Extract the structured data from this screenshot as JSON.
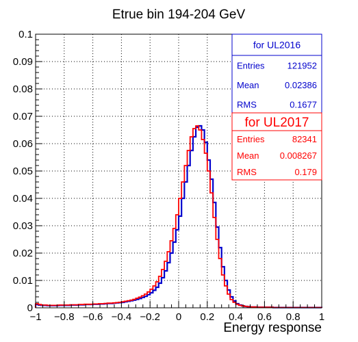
{
  "chart_data": {
    "type": "line",
    "title": "Etrue bin 194-204 GeV",
    "xlabel": "Energy response",
    "ylabel": "",
    "xlim": [
      -1,
      1
    ],
    "ylim": [
      0,
      0.1
    ],
    "grid": true,
    "x_ticks": [
      "−1",
      "−0.8",
      "−0.6",
      "−0.4",
      "−0.2",
      "0",
      "0.2",
      "0.4",
      "0.6",
      "0.8",
      "1"
    ],
    "x_tick_values": [
      -1,
      -0.8,
      -0.6,
      -0.4,
      -0.2,
      0,
      0.2,
      0.4,
      0.6,
      0.8,
      1
    ],
    "y_ticks": [
      "0",
      "0.01",
      "0.02",
      "0.03",
      "0.04",
      "0.05",
      "0.06",
      "0.07",
      "0.08",
      "0.09",
      "0.1"
    ],
    "y_tick_values": [
      0,
      0.01,
      0.02,
      0.03,
      0.04,
      0.05,
      0.06,
      0.07,
      0.08,
      0.09,
      0.1
    ],
    "bin_edges_range": [
      -1,
      1
    ],
    "bin_width": 0.02,
    "series": [
      {
        "name": "for UL2016",
        "color": "#0000cc",
        "values": [
          0.0012,
          0.001,
          0.0009,
          0.0009,
          0.0008,
          0.0008,
          0.0008,
          0.0008,
          0.0009,
          0.0009,
          0.0009,
          0.0009,
          0.001,
          0.001,
          0.001,
          0.0011,
          0.0011,
          0.0012,
          0.0012,
          0.0012,
          0.0013,
          0.0013,
          0.0014,
          0.0014,
          0.0015,
          0.0016,
          0.0016,
          0.0017,
          0.0018,
          0.0019,
          0.002,
          0.0022,
          0.0024,
          0.0026,
          0.0028,
          0.0031,
          0.0034,
          0.0038,
          0.0042,
          0.0048,
          0.0055,
          0.0064,
          0.0075,
          0.009,
          0.011,
          0.0135,
          0.0165,
          0.02,
          0.024,
          0.0285,
          0.0335,
          0.04,
          0.046,
          0.052,
          0.0575,
          0.0625,
          0.066,
          0.0665,
          0.065,
          0.0605,
          0.054,
          0.047,
          0.0385,
          0.0295,
          0.022,
          0.015,
          0.01,
          0.0065,
          0.004,
          0.0025,
          0.0015,
          0.001,
          0.0007,
          0.0005,
          0.0004,
          0.0003,
          0.0003,
          0.0002,
          0.0002,
          0.0002,
          0.0002,
          0.0002,
          0.0002,
          0.0001,
          0.0001,
          0.0001,
          0.0001,
          0.0001,
          0.0001,
          0.0001,
          0.0001,
          0.0001,
          0.0001,
          0.0001,
          0.0001,
          0.0001,
          0.0001,
          0.0001,
          0.0001,
          0.0001
        ]
      },
      {
        "name": "for UL2017",
        "color": "#ff0000",
        "values": [
          0.0015,
          0.0012,
          0.001,
          0.001,
          0.0009,
          0.0009,
          0.0009,
          0.0009,
          0.001,
          0.001,
          0.001,
          0.001,
          0.0011,
          0.0011,
          0.0011,
          0.0012,
          0.0012,
          0.0013,
          0.0013,
          0.0013,
          0.0014,
          0.0014,
          0.0015,
          0.0015,
          0.0016,
          0.0017,
          0.0017,
          0.0018,
          0.0019,
          0.002,
          0.0022,
          0.0024,
          0.0026,
          0.0028,
          0.0031,
          0.0035,
          0.0039,
          0.0044,
          0.005,
          0.0058,
          0.0068,
          0.008,
          0.0095,
          0.0115,
          0.014,
          0.017,
          0.0205,
          0.0245,
          0.029,
          0.034,
          0.04,
          0.046,
          0.052,
          0.0575,
          0.0625,
          0.0655,
          0.0665,
          0.065,
          0.0615,
          0.0565,
          0.05,
          0.042,
          0.033,
          0.025,
          0.018,
          0.012,
          0.008,
          0.005,
          0.003,
          0.002,
          0.0013,
          0.0009,
          0.0007,
          0.0005,
          0.0004,
          0.0003,
          0.0003,
          0.0002,
          0.0002,
          0.0002,
          0.0002,
          0.0002,
          0.0002,
          0.0001,
          0.0001,
          0.0001,
          0.0001,
          0.0001,
          0.0001,
          0.0001,
          0.0001,
          0.0001,
          0.0001,
          0.0001,
          0.0001,
          0.0001,
          0.0001,
          0.0001,
          0.0001,
          0.0001
        ]
      }
    ]
  },
  "stats_boxes": [
    {
      "header": "for UL2016",
      "color": "#0000cc",
      "rows": [
        {
          "label": "Entries",
          "value": "121952"
        },
        {
          "label": "Mean",
          "value": "0.02386"
        },
        {
          "label": "RMS",
          "value": "0.1677"
        }
      ]
    },
    {
      "header": "for UL2017",
      "color": "#ff0000",
      "rows": [
        {
          "label": "Entries",
          "value": "82341"
        },
        {
          "label": "Mean",
          "value": "0.008267"
        },
        {
          "label": "RMS",
          "value": "0.179"
        }
      ]
    }
  ]
}
